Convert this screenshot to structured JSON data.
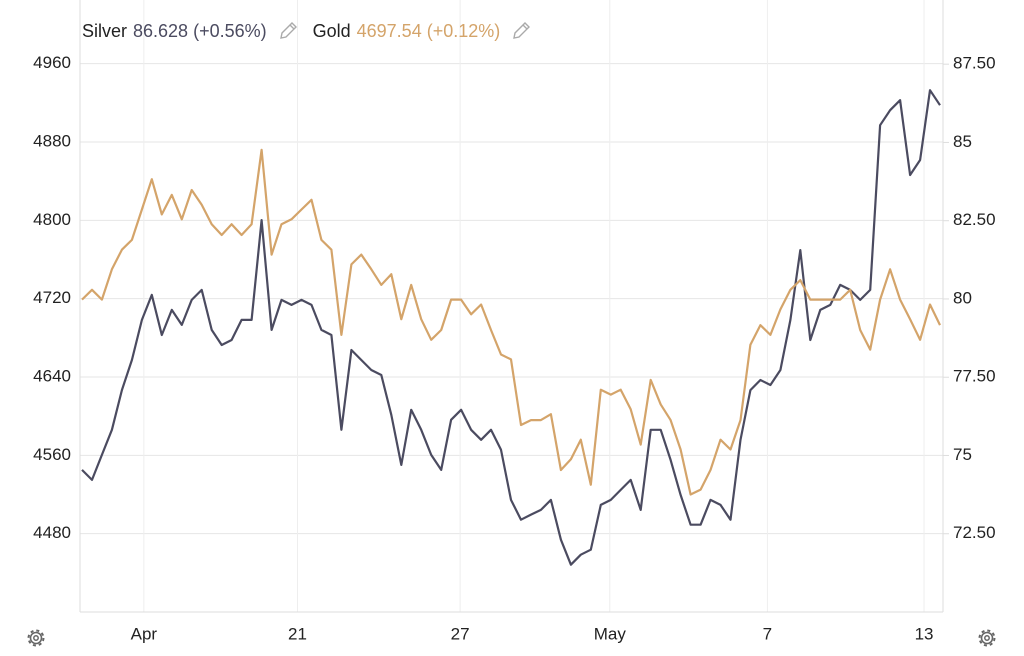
{
  "chart_data": {
    "type": "line",
    "x": [
      0,
      1,
      2,
      3,
      4,
      5,
      6,
      7,
      8,
      9,
      10,
      11,
      12,
      13,
      14,
      15,
      16,
      17,
      18,
      19,
      20,
      21,
      22,
      23,
      24,
      25,
      26,
      27,
      28,
      29,
      30,
      31,
      32,
      33,
      34,
      35,
      36,
      37,
      38,
      39,
      40,
      41,
      42,
      43,
      44,
      45,
      46,
      47,
      48,
      49,
      50,
      51,
      52,
      53,
      54,
      55,
      56,
      57,
      58,
      59,
      60,
      61,
      62,
      63,
      64,
      65,
      66,
      67,
      68,
      69,
      70,
      71,
      72,
      73,
      74,
      75,
      76,
      77,
      78,
      79,
      80,
      81,
      82,
      83,
      84,
      85,
      86
    ],
    "xlim": [
      -0.2,
      86.3
    ],
    "xticks": [
      {
        "value": 6.2,
        "label": "Apr"
      },
      {
        "value": 21.6,
        "label": "21"
      },
      {
        "value": 37.9,
        "label": "27"
      },
      {
        "value": 52.9,
        "label": "May"
      },
      {
        "value": 68.7,
        "label": "7"
      },
      {
        "value": 84.4,
        "label": "13"
      }
    ],
    "ylim": [
      4400,
      5025
    ],
    "yticks": [
      4480,
      4560,
      4640,
      4720,
      4800,
      4880,
      4960
    ],
    "y2lim": [
      70,
      89.55
    ],
    "y2ticks": [
      {
        "value": 72.5,
        "label": "72.50"
      },
      75,
      {
        "value": 77.5,
        "label": "77.50"
      },
      80,
      {
        "value": 82.5,
        "label": "82.50"
      },
      85,
      {
        "value": 87.5,
        "label": "87.50"
      }
    ],
    "grid": true,
    "series": [
      {
        "name": "Silver",
        "legend_value": "86.628 (+0.56%)",
        "color": "#4b4b60",
        "axis": "y2",
        "values": [
          74.54,
          74.22,
          75.02,
          75.82,
          77.09,
          78.05,
          79.33,
          80.13,
          78.85,
          79.65,
          79.17,
          79.97,
          80.29,
          79.01,
          78.53,
          78.69,
          79.33,
          79.33,
          82.52,
          79.01,
          79.97,
          79.81,
          79.97,
          79.81,
          79.01,
          78.85,
          75.82,
          78.37,
          78.05,
          77.73,
          77.57,
          76.3,
          74.7,
          76.46,
          75.82,
          75.02,
          74.54,
          76.14,
          76.46,
          75.82,
          75.5,
          75.82,
          75.18,
          73.58,
          72.95,
          73.11,
          73.26,
          73.58,
          72.31,
          71.51,
          71.83,
          71.99,
          73.42,
          73.58,
          73.9,
          74.22,
          73.26,
          75.82,
          75.82,
          74.86,
          73.74,
          72.79,
          72.79,
          73.58,
          73.42,
          72.95,
          75.5,
          77.09,
          77.41,
          77.25,
          77.73,
          79.33,
          81.56,
          78.69,
          79.65,
          79.81,
          80.45,
          80.29,
          79.97,
          80.29,
          85.55,
          86.03,
          86.35,
          83.96,
          84.44,
          86.67,
          86.19
        ]
      },
      {
        "name": "Gold",
        "legend_value": "4697.54 (+0.12%)",
        "color": "#d4a46a",
        "axis": "y",
        "values": [
          4719,
          4729,
          4719,
          4750,
          4770,
          4780,
          4811,
          4842,
          4806,
          4826,
          4801,
          4831,
          4816,
          4796,
          4785,
          4796,
          4785,
          4796,
          4872,
          4765,
          4796,
          4801,
          4811,
          4821,
          4780,
          4770,
          4683,
          4755,
          4765,
          4750,
          4734,
          4745,
          4699,
          4734,
          4699,
          4678,
          4688,
          4719,
          4719,
          4704,
          4714,
          4688,
          4663,
          4658,
          4591,
          4596,
          4596,
          4602,
          4545,
          4556,
          4576,
          4530,
          4627,
          4622,
          4627,
          4607,
          4571,
          4637,
          4612,
          4596,
          4566,
          4520,
          4525,
          4545,
          4576,
          4566,
          4596,
          4673,
          4693,
          4683,
          4709,
          4729,
          4739,
          4719,
          4719,
          4719,
          4719,
          4729,
          4688,
          4668,
          4719,
          4750,
          4719,
          4699,
          4678,
          4714,
          4693
        ]
      }
    ]
  }
}
